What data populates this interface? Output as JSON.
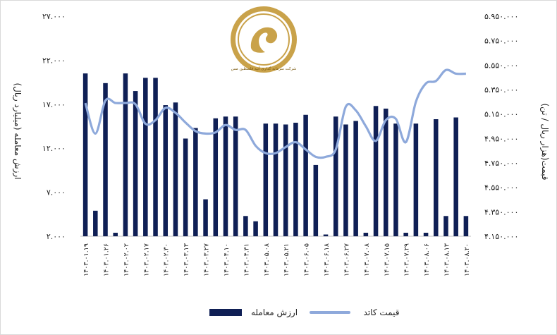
{
  "chart_data": {
    "type": "bar",
    "left_axis": {
      "label": "ارزش معامله (میلیارد ریال)",
      "range": [
        2000,
        27000
      ],
      "ticks": [
        "۲.۰۰۰",
        "۷.۰۰۰",
        "۱۲.۰۰۰",
        "۱۷.۰۰۰",
        "۲۲.۰۰۰",
        "۲۷.۰۰۰"
      ]
    },
    "right_axis": {
      "label": "قیمت(هزار ریال / تن)",
      "range": [
        4150000,
        5950000
      ],
      "ticks": [
        "۴.۱۵۰.۰۰۰",
        "۴.۳۵۰.۰۰۰",
        "۴.۵۵۰.۰۰۰",
        "۴.۷۵۰.۰۰۰",
        "۴.۹۵۰.۰۰۰",
        "۵.۱۵۰.۰۰۰",
        "۵.۳۵۰.۰۰۰",
        "۵.۵۵۰.۰۰۰",
        "۵.۷۵۰.۰۰۰",
        "۵.۹۵۰.۰۰۰"
      ]
    },
    "x_tick_labels": [
      "۱۴۰۳.۰۱.۱۹",
      "۱۴۰۳.۰۱.۲۶",
      "۱۴۰۳.۰۲.۰۲",
      "۱۴۰۳.۰۲.۱۷",
      "۱۴۰۳.۰۲.۳۰",
      "۱۴۰۳.۰۳.۱۳",
      "۱۴۰۳.۰۳.۲۷",
      "۱۴۰۳.۰۴.۱۰",
      "۱۴۰۳.۰۴.۳۱",
      "۱۴۰۳.۰۵.۰۸",
      "۱۴۰۳.۰۵.۲۱",
      "۱۴۰۳.۰۶.۰۵",
      "۱۴۰۳.۰۶.۱۸",
      "۱۴۰۳.۰۶.۲۷",
      "۱۴۰۳.۰۷.۰۸",
      "۱۴۰۳.۰۷.۱۵",
      "۱۴۰۳.۰۷.۲۹",
      "۱۴۰۳.۰۸.۰۶",
      "۱۴۰۳.۰۸.۱۳",
      "۱۴۰۳.۰۸.۲۰"
    ],
    "series": [
      {
        "name": "ارزش معامله",
        "type": "bar",
        "axis": "left",
        "color": "#0f1f55",
        "values": [
          20500,
          4900,
          19400,
          2400,
          20500,
          18500,
          20000,
          20000,
          16900,
          17200,
          13100,
          14300,
          6200,
          15400,
          15600,
          15600,
          4300,
          3700,
          14800,
          14800,
          14700,
          14900,
          15800,
          10100,
          2200,
          15600,
          14700,
          15100,
          2400,
          16800,
          16500,
          14800,
          2400,
          14800,
          2400,
          15300,
          4300,
          15500,
          4300
        ],
        "line_values": []
      },
      {
        "name": "قیمت کاتد",
        "type": "line",
        "axis": "right",
        "color": "#8ea9db",
        "values": [
          5240000,
          4990000,
          5260000,
          5240000,
          5240000,
          5230000,
          5070000,
          5100000,
          5200000,
          5160000,
          5080000,
          5010000,
          4990000,
          5000000,
          5060000,
          5020000,
          5020000,
          4890000,
          4830000,
          4830000,
          4880000,
          4920000,
          4860000,
          4800000,
          4800000,
          4860000,
          5210000,
          5180000,
          5050000,
          4930000,
          5100000,
          5110000,
          4920000,
          5250000,
          5400000,
          5420000,
          5510000,
          5480000,
          5480000
        ]
      }
    ]
  },
  "legend": {
    "bar_label": "ارزش معامله",
    "line_label": "قیمت کاتد"
  },
  "logo": {
    "caption": "شرکت سرمایه گذاری آتیه فلسطین مس"
  }
}
